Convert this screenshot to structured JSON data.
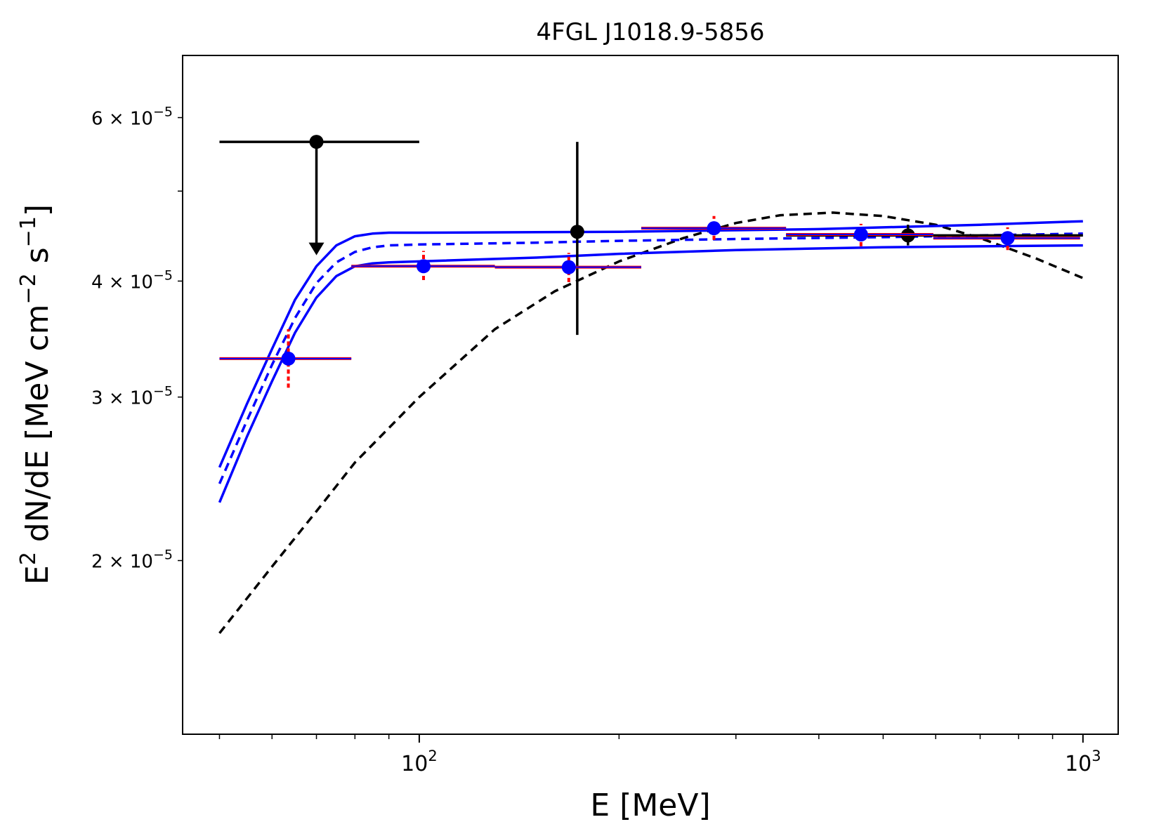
{
  "chart_data": {
    "type": "scatter",
    "title": "4FGL J1018.9-5856",
    "xlabel": "E [MeV]",
    "ylabel_main": "E",
    "ylabel_sup1": "2",
    "ylabel_mid": " dN/dE [MeV cm",
    "ylabel_sup2": "−2",
    "ylabel_mid2": " s",
    "ylabel_sup3": "−1",
    "ylabel_end": "]",
    "x_scale": "log",
    "y_scale": "log",
    "xlim": [
      44,
      1130
    ],
    "ylim": [
      1.3e-05,
      7e-05
    ],
    "x_ticks": [
      {
        "value": 100,
        "base": "10",
        "exp": "2"
      },
      {
        "value": 1000,
        "base": "10",
        "exp": "3"
      }
    ],
    "y_ticks": [
      {
        "value": 2e-05,
        "mant": "2",
        "base": "× 10",
        "exp": "−5"
      },
      {
        "value": 3e-05,
        "mant": "3",
        "base": "× 10",
        "exp": "−5"
      },
      {
        "value": 4e-05,
        "mant": "4",
        "base": "× 10",
        "exp": "−5"
      },
      {
        "value": 6e-05,
        "mant": "6",
        "base": "× 10",
        "exp": "−5"
      }
    ],
    "colors": {
      "blue": "#0000ff",
      "red": "#ff0000",
      "black": "#000000"
    },
    "blue_points": [
      {
        "x": 63.5,
        "y": 3.3e-05,
        "xlo": 50,
        "xhi": 79,
        "ylo": 3.07e-05,
        "yhi": 3.55e-05
      },
      {
        "x": 101.5,
        "y": 4.15e-05,
        "xlo": 79,
        "xhi": 130,
        "ylo": 4.01e-05,
        "yhi": 4.31e-05
      },
      {
        "x": 168,
        "y": 4.14e-05,
        "xlo": 130,
        "xhi": 216,
        "ylo": 3.99e-05,
        "yhi": 4.29e-05
      },
      {
        "x": 278,
        "y": 4.56e-05,
        "xlo": 216,
        "xhi": 357,
        "ylo": 4.43e-05,
        "yhi": 4.7e-05
      },
      {
        "x": 463,
        "y": 4.49e-05,
        "xlo": 357,
        "xhi": 595,
        "ylo": 4.36e-05,
        "yhi": 4.61e-05
      },
      {
        "x": 770,
        "y": 4.45e-05,
        "xlo": 595,
        "xhi": 990,
        "ylo": 4.32e-05,
        "yhi": 4.57e-05
      }
    ],
    "black_points": [
      {
        "x": 173,
        "y": 4.52e-05,
        "ylo": 3.5e-05,
        "yhi": 5.65e-05
      },
      {
        "x": 545,
        "y": 4.48e-05,
        "xlo": 357,
        "xhi": 1000,
        "ylo": 4.37e-05,
        "yhi": 4.6e-05
      }
    ],
    "upper_limit": {
      "x": 70,
      "y": 5.65e-05,
      "xlo": 50,
      "xhi": 100,
      "y_arrow_end": 4.28e-05
    },
    "model_central": [
      [
        50,
        2.42e-05
      ],
      [
        55,
        2.83e-05
      ],
      [
        60,
        3.25e-05
      ],
      [
        65,
        3.65e-05
      ],
      [
        70,
        3.98e-05
      ],
      [
        75,
        4.19e-05
      ],
      [
        80,
        4.3e-05
      ],
      [
        85,
        4.35e-05
      ],
      [
        90,
        4.37e-05
      ],
      [
        100,
        4.38e-05
      ],
      [
        150,
        4.4e-05
      ],
      [
        200,
        4.42e-05
      ],
      [
        300,
        4.44e-05
      ],
      [
        500,
        4.46e-05
      ],
      [
        700,
        4.48e-05
      ],
      [
        1000,
        4.5e-05
      ]
    ],
    "model_upper": [
      [
        50,
        2.52e-05
      ],
      [
        55,
        2.95e-05
      ],
      [
        60,
        3.38e-05
      ],
      [
        65,
        3.82e-05
      ],
      [
        70,
        4.15e-05
      ],
      [
        75,
        4.37e-05
      ],
      [
        80,
        4.47e-05
      ],
      [
        85,
        4.5e-05
      ],
      [
        90,
        4.51e-05
      ],
      [
        100,
        4.51e-05
      ],
      [
        200,
        4.52e-05
      ],
      [
        400,
        4.55e-05
      ],
      [
        700,
        4.6e-05
      ],
      [
        1000,
        4.64e-05
      ]
    ],
    "model_lower": [
      [
        50,
        2.31e-05
      ],
      [
        55,
        2.72e-05
      ],
      [
        60,
        3.12e-05
      ],
      [
        65,
        3.52e-05
      ],
      [
        70,
        3.84e-05
      ],
      [
        75,
        4.05e-05
      ],
      [
        80,
        4.15e-05
      ],
      [
        85,
        4.18e-05
      ],
      [
        90,
        4.19e-05
      ],
      [
        100,
        4.2e-05
      ],
      [
        150,
        4.24e-05
      ],
      [
        200,
        4.28e-05
      ],
      [
        300,
        4.32e-05
      ],
      [
        500,
        4.35e-05
      ],
      [
        700,
        4.36e-05
      ],
      [
        1000,
        4.37e-05
      ]
    ],
    "model_black": [
      [
        50,
        1.67e-05
      ],
      [
        60,
        1.97e-05
      ],
      [
        70,
        2.26e-05
      ],
      [
        80,
        2.55e-05
      ],
      [
        100,
        3e-05
      ],
      [
        130,
        3.55e-05
      ],
      [
        160,
        3.9e-05
      ],
      [
        200,
        4.2e-05
      ],
      [
        250,
        4.45e-05
      ],
      [
        300,
        4.62e-05
      ],
      [
        350,
        4.71e-05
      ],
      [
        420,
        4.74e-05
      ],
      [
        500,
        4.7e-05
      ],
      [
        600,
        4.6e-05
      ],
      [
        700,
        4.45e-05
      ],
      [
        850,
        4.23e-05
      ],
      [
        1000,
        4.03e-05
      ]
    ]
  }
}
